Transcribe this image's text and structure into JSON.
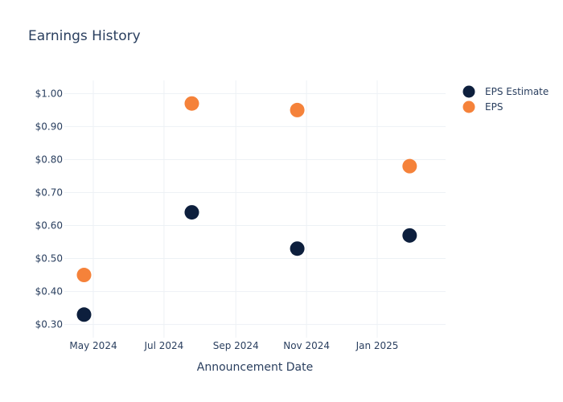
{
  "chart_data": {
    "type": "scatter",
    "title": "Earnings History",
    "xlabel": "Announcement Date",
    "ylabel": "",
    "x_ticks": [
      "May 2024",
      "Jul 2024",
      "Sep 2024",
      "Nov 2024",
      "Jan 2025"
    ],
    "y_ticks": [
      "$0.30",
      "$0.40",
      "$0.50",
      "$0.60",
      "$0.70",
      "$0.80",
      "$0.90",
      "$1.00"
    ],
    "ylim": [
      0.26,
      1.04
    ],
    "xlim": [
      "2024-04-06",
      "2025-03-01"
    ],
    "grid": true,
    "legend": "top-right",
    "x": [
      "2024-04-23",
      "2024-07-25",
      "2024-10-24",
      "2025-01-29"
    ],
    "series": [
      {
        "name": "EPS Estimate",
        "color": "#0d1f3d",
        "values": [
          0.33,
          0.64,
          0.53,
          0.57
        ]
      },
      {
        "name": "EPS",
        "color": "#f5823a",
        "values": [
          0.45,
          0.97,
          0.95,
          0.78
        ]
      }
    ]
  }
}
